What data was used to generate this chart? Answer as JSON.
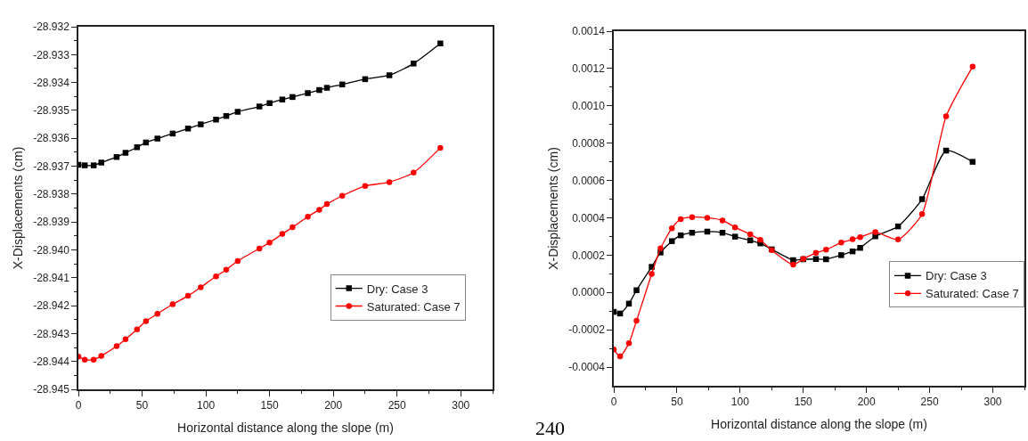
{
  "chart_data": [
    {
      "type": "line",
      "xlabel": "Horizontal distance along the slope (m)",
      "ylabel": "X-Displacements (cm)",
      "xlim": [
        0,
        325
      ],
      "xticks": [
        0,
        50,
        100,
        150,
        200,
        250,
        300
      ],
      "ylim": [
        -28.945,
        -28.932
      ],
      "yticks": [
        -28.932,
        -28.933,
        -28.934,
        -28.935,
        -28.936,
        -28.937,
        -28.938,
        -28.939,
        {
          "value": -28.94,
          "label": "-28.940"
        },
        -28.941,
        -28.942,
        -28.943,
        -28.944,
        -28.945
      ],
      "legend": "bottom right",
      "annotations": [
        "240"
      ],
      "x": [
        0,
        5,
        12,
        18,
        30,
        37,
        46,
        53,
        62,
        74,
        86,
        96,
        108,
        116,
        125,
        142,
        150,
        160,
        168,
        180,
        189,
        195,
        207,
        225,
        244,
        263,
        284
      ],
      "series": [
        {
          "name": "Dry: Case 3",
          "color": "#000000",
          "marker": "square",
          "values": [
            -28.93695,
            -28.93697,
            -28.93697,
            -28.93687,
            -28.93667,
            -28.93652,
            -28.93632,
            -28.93615,
            -28.93601,
            -28.93583,
            -28.93565,
            -28.9355,
            -28.93533,
            -28.9352,
            -28.93505,
            -28.93486,
            -28.93474,
            -28.93461,
            -28.93452,
            -28.93438,
            -28.93427,
            -28.93419,
            -28.93407,
            -28.93388,
            -28.93374,
            -28.93332,
            -28.9326
          ]
        },
        {
          "name": "Saturated: Case 7",
          "color": "#ff0000",
          "marker": "circle",
          "values": [
            -28.94383,
            -28.94394,
            -28.94394,
            -28.9438,
            -28.94345,
            -28.9432,
            -28.94285,
            -28.94256,
            -28.94229,
            -28.94195,
            -28.94165,
            -28.94134,
            -28.94095,
            -28.94071,
            -28.9404,
            -28.93995,
            -28.93974,
            -28.93943,
            -28.93919,
            -28.93881,
            -28.93856,
            -28.93836,
            -28.93806,
            -28.93771,
            -28.93757,
            -28.93723,
            -28.93634
          ]
        }
      ]
    },
    {
      "type": "line",
      "xlabel": "Horizontal distance along the slope (m)",
      "ylabel": "X-Displacements (cm)",
      "xlim": [
        0,
        325
      ],
      "xticks": [
        0,
        50,
        100,
        150,
        200,
        250,
        300
      ],
      "ylim": [
        -0.0005,
        0.0014
      ],
      "yticks": [
        {
          "value": -0.0004,
          "label": "-0.0004"
        },
        {
          "value": -0.0002,
          "label": "-0.0002"
        },
        {
          "value": 0,
          "label": "0.0000"
        },
        {
          "value": 0.0002,
          "label": "0.0002"
        },
        {
          "value": 0.0004,
          "label": "0.0004"
        },
        {
          "value": 0.0006,
          "label": "0.0006"
        },
        {
          "value": 0.0008,
          "label": "0.0008"
        },
        {
          "value": 0.001,
          "label": "0.0010"
        },
        {
          "value": 0.0012,
          "label": "0.0012"
        },
        {
          "value": 0.0014,
          "label": "0.0014"
        }
      ],
      "legend": "bottom right",
      "x": [
        0,
        5,
        12,
        18,
        30,
        37,
        46,
        53,
        62,
        74,
        86,
        96,
        108,
        116,
        125,
        142,
        150,
        160,
        168,
        180,
        189,
        195,
        207,
        225,
        244,
        263,
        284
      ],
      "series": [
        {
          "name": "Dry: Case 3",
          "color": "#000000",
          "marker": "square",
          "values": [
            -0.000104,
            -0.000113,
            -6e-05,
            1.2e-05,
            0.000137,
            0.000214,
            0.000275,
            0.000306,
            0.00032,
            0.000326,
            0.00032,
            0.000299,
            0.000279,
            0.000263,
            0.000231,
            0.000173,
            0.000178,
            0.000179,
            0.000178,
            0.0002,
            0.00022,
            0.000239,
            0.000301,
            0.000354,
            0.0005,
            0.00076,
            0.0007
          ]
        },
        {
          "name": "Saturated: Case 7",
          "color": "#ff0000",
          "marker": "circle",
          "values": [
            -0.000306,
            -0.000342,
            -0.000272,
            -0.000152,
            9.9e-05,
            0.000236,
            0.000344,
            0.000393,
            0.000403,
            0.0004,
            0.000386,
            0.000349,
            0.000311,
            0.000282,
            0.000227,
            0.000149,
            0.00018,
            0.000212,
            0.000229,
            0.000267,
            0.000285,
            0.000296,
            0.000323,
            0.000284,
            0.00042,
            0.000944,
            0.00121
          ]
        }
      ]
    }
  ]
}
